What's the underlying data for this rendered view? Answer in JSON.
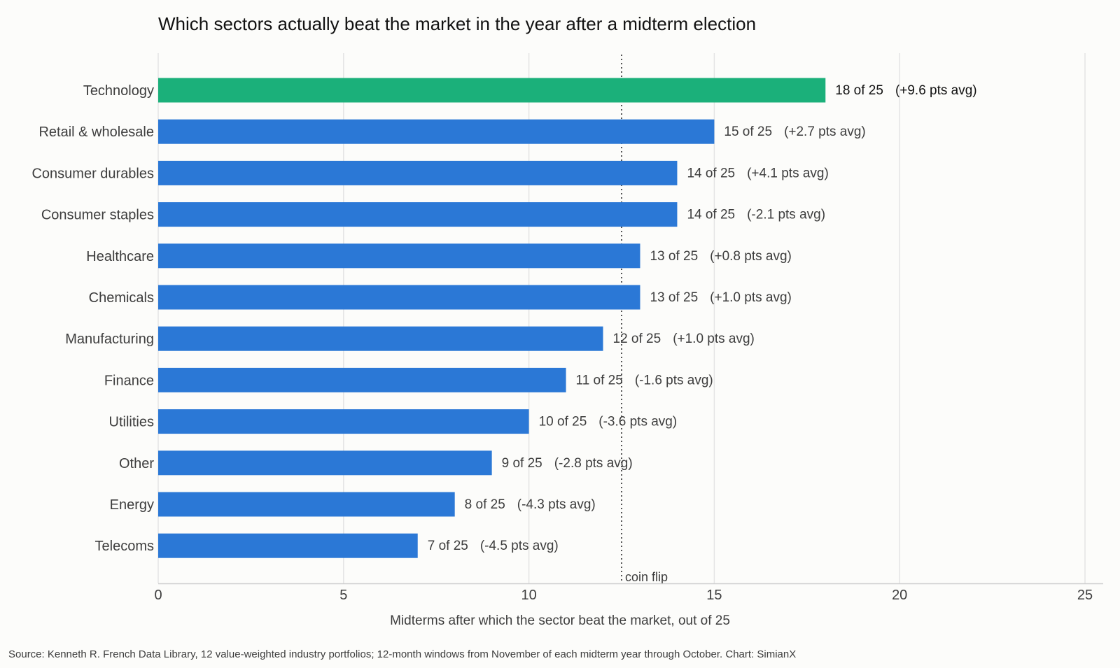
{
  "chart_data": {
    "type": "bar",
    "orientation": "horizontal",
    "title": "Which sectors actually beat the market in the year after a midterm election",
    "xlabel": "Midterms after which the sector beat the market, out of 25",
    "ylabel": "",
    "xlim": [
      0,
      25
    ],
    "x_ticks": [
      0,
      5,
      10,
      15,
      20,
      25
    ],
    "grid": "vertical",
    "categories": [
      "Technology",
      "Retail & wholesale",
      "Consumer durables",
      "Consumer staples",
      "Healthcare",
      "Chemicals",
      "Manufacturing",
      "Finance",
      "Utilities",
      "Other",
      "Energy",
      "Telecoms"
    ],
    "values": [
      18,
      15,
      14,
      14,
      13,
      13,
      12,
      11,
      10,
      9,
      8,
      7
    ],
    "value_labels": [
      "18 of 25",
      "15 of 25",
      "14 of 25",
      "14 of 25",
      "13 of 25",
      "13 of 25",
      "12 of 25",
      "11 of 25",
      "10 of 25",
      "9 of 25",
      "8 of 25",
      "7 of 25"
    ],
    "avg_labels": [
      "(+9.6 pts avg)",
      "(+2.7 pts avg)",
      "(+4.1 pts avg)",
      "(-2.1 pts avg)",
      "(+0.8 pts avg)",
      "(+1.0 pts avg)",
      "(+1.0 pts avg)",
      "(-1.6 pts avg)",
      "(-3.6 pts avg)",
      "(-2.8 pts avg)",
      "(-4.3 pts avg)",
      "(-4.5 pts avg)"
    ],
    "highlight_index": 0,
    "colors": {
      "highlight": "#1bb07a",
      "default": "#2b78d6"
    },
    "reference_line": {
      "value": 12.5,
      "label": "coin flip",
      "style": "dotted"
    },
    "source": "Source: Kenneth R. French Data Library, 12 value-weighted industry portfolios; 12-month windows from November of each midterm year through October.  Chart: SimianX"
  }
}
